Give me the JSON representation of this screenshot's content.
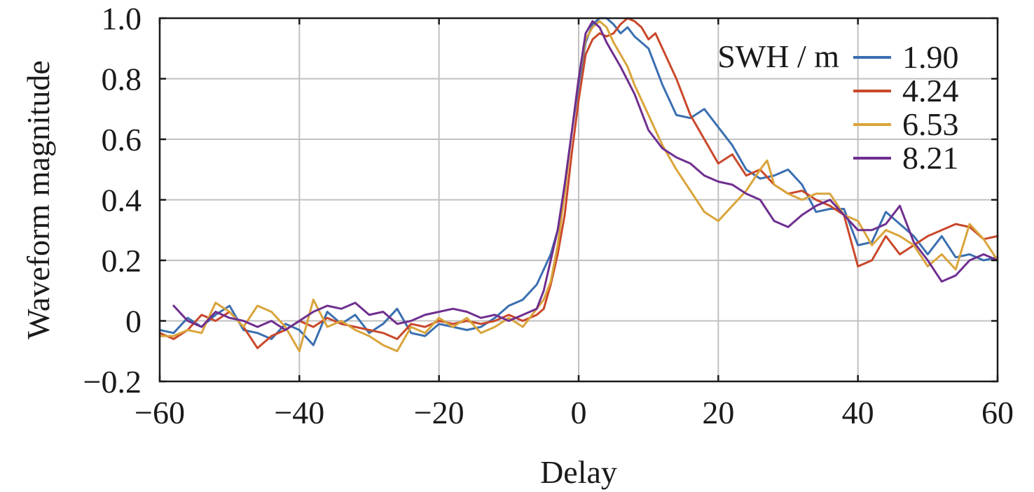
{
  "chart_data": {
    "type": "line",
    "title": "",
    "xlabel": "Delay",
    "ylabel": "Waveform magnitude",
    "xlim": [
      -60,
      60
    ],
    "ylim": [
      -0.2,
      1.0
    ],
    "xticks": [
      -60,
      -40,
      -20,
      0,
      20,
      40,
      60
    ],
    "xtick_labels": [
      "−60",
      "−40",
      "−20",
      "0",
      "20",
      "40",
      "60"
    ],
    "yticks": [
      -0.2,
      0,
      0.2,
      0.4,
      0.6,
      0.8,
      1.0
    ],
    "ytick_labels": [
      "−0.2",
      "0",
      "0.2",
      "0.4",
      "0.6",
      "0.8",
      "1.0"
    ],
    "grid": true,
    "legend": {
      "title": "SWH / m",
      "position": "top-right"
    },
    "series": [
      {
        "name": "1.90",
        "color": "#3a6fb0",
        "x": [
          -60,
          -58,
          -56,
          -54,
          -52,
          -50,
          -48,
          -46,
          -44,
          -42,
          -40,
          -38,
          -36,
          -34,
          -32,
          -30,
          -28,
          -26,
          -24,
          -22,
          -20,
          -18,
          -16,
          -14,
          -12,
          -10,
          -8,
          -6,
          -5,
          -4,
          -3,
          -2,
          -1,
          0,
          1,
          2,
          3,
          4,
          5,
          6,
          7,
          8,
          10,
          12,
          14,
          16,
          18,
          20,
          22,
          24,
          26,
          28,
          30,
          32,
          34,
          36,
          38,
          40,
          42,
          44,
          46,
          48,
          50,
          52,
          54,
          56,
          58,
          60
        ],
        "y": [
          -0.03,
          -0.04,
          0.01,
          -0.02,
          0.02,
          0.05,
          -0.03,
          -0.04,
          -0.06,
          -0.01,
          -0.03,
          -0.08,
          0.03,
          -0.01,
          0.02,
          -0.04,
          -0.01,
          0.04,
          -0.04,
          -0.05,
          -0.01,
          -0.02,
          -0.03,
          -0.02,
          0.01,
          0.05,
          0.07,
          0.12,
          0.17,
          0.22,
          0.3,
          0.45,
          0.62,
          0.78,
          0.92,
          0.98,
          1.0,
          1.0,
          0.98,
          0.95,
          0.97,
          0.94,
          0.9,
          0.78,
          0.68,
          0.67,
          0.7,
          0.64,
          0.58,
          0.5,
          0.47,
          0.48,
          0.5,
          0.45,
          0.36,
          0.37,
          0.37,
          0.25,
          0.26,
          0.36,
          0.32,
          0.28,
          0.22,
          0.28,
          0.21,
          0.22,
          0.2,
          0.21
        ]
      },
      {
        "name": "4.24",
        "color": "#c9482b",
        "x": [
          -60,
          -58,
          -56,
          -54,
          -52,
          -50,
          -48,
          -46,
          -44,
          -42,
          -40,
          -38,
          -36,
          -34,
          -32,
          -30,
          -28,
          -26,
          -24,
          -22,
          -20,
          -18,
          -16,
          -14,
          -12,
          -10,
          -8,
          -6,
          -5,
          -4,
          -3,
          -2,
          -1,
          0,
          1,
          2,
          3,
          4,
          5,
          6,
          7,
          8,
          9,
          10,
          11,
          12,
          14,
          16,
          18,
          20,
          22,
          24,
          26,
          28,
          30,
          32,
          34,
          36,
          38,
          40,
          42,
          44,
          46,
          48,
          50,
          52,
          54,
          56,
          58,
          60
        ],
        "y": [
          -0.04,
          -0.06,
          -0.03,
          0.02,
          0.0,
          0.03,
          -0.02,
          -0.09,
          -0.05,
          -0.03,
          0.0,
          -0.02,
          0.01,
          -0.01,
          -0.02,
          -0.03,
          -0.04,
          -0.06,
          -0.01,
          -0.02,
          0.0,
          -0.01,
          0.0,
          -0.01,
          0.0,
          0.02,
          0.0,
          0.02,
          0.04,
          0.12,
          0.22,
          0.35,
          0.55,
          0.73,
          0.88,
          0.93,
          0.95,
          0.94,
          0.95,
          0.98,
          1.0,
          0.99,
          0.97,
          0.93,
          0.95,
          0.9,
          0.8,
          0.68,
          0.6,
          0.52,
          0.55,
          0.48,
          0.5,
          0.45,
          0.42,
          0.43,
          0.4,
          0.38,
          0.35,
          0.18,
          0.2,
          0.28,
          0.22,
          0.25,
          0.28,
          0.3,
          0.32,
          0.31,
          0.27,
          0.28
        ]
      },
      {
        "name": "6.53",
        "color": "#d9a43a",
        "x": [
          -60,
          -58,
          -56,
          -54,
          -52,
          -50,
          -48,
          -46,
          -44,
          -42,
          -40,
          -38,
          -36,
          -34,
          -32,
          -30,
          -28,
          -26,
          -24,
          -22,
          -20,
          -18,
          -16,
          -14,
          -12,
          -10,
          -8,
          -6,
          -5,
          -4,
          -3,
          -2,
          -1,
          0,
          1,
          2,
          3,
          4,
          5,
          6,
          7,
          8,
          10,
          12,
          14,
          16,
          18,
          20,
          22,
          24,
          26,
          27,
          28,
          30,
          32,
          34,
          36,
          38,
          40,
          42,
          44,
          46,
          48,
          50,
          52,
          54,
          56,
          58,
          60
        ],
        "y": [
          -0.05,
          -0.05,
          -0.03,
          -0.04,
          0.06,
          0.03,
          -0.02,
          0.05,
          0.03,
          -0.02,
          -0.1,
          0.07,
          -0.02,
          0.0,
          -0.03,
          -0.05,
          -0.08,
          -0.1,
          -0.02,
          -0.04,
          0.01,
          -0.02,
          0.01,
          -0.04,
          -0.02,
          0.01,
          -0.02,
          0.04,
          0.07,
          0.13,
          0.25,
          0.42,
          0.62,
          0.8,
          0.93,
          0.97,
          0.99,
          0.97,
          0.92,
          0.88,
          0.84,
          0.78,
          0.68,
          0.58,
          0.5,
          0.43,
          0.36,
          0.33,
          0.38,
          0.43,
          0.5,
          0.53,
          0.45,
          0.42,
          0.4,
          0.42,
          0.42,
          0.35,
          0.33,
          0.25,
          0.3,
          0.28,
          0.25,
          0.18,
          0.22,
          0.17,
          0.32,
          0.27,
          0.2
        ]
      },
      {
        "name": "8.21",
        "color": "#6f2f8f",
        "x": [
          -58,
          -56,
          -54,
          -52,
          -50,
          -48,
          -46,
          -44,
          -42,
          -40,
          -38,
          -36,
          -34,
          -32,
          -30,
          -28,
          -26,
          -24,
          -22,
          -20,
          -18,
          -16,
          -14,
          -12,
          -10,
          -8,
          -6,
          -5,
          -4,
          -3,
          -2,
          -1,
          0,
          1,
          2,
          3,
          4,
          5,
          6,
          8,
          10,
          12,
          14,
          16,
          18,
          20,
          22,
          24,
          26,
          28,
          30,
          32,
          34,
          36,
          38,
          40,
          42,
          44,
          46,
          48,
          50,
          52,
          54,
          56,
          58,
          60
        ],
        "y": [
          0.05,
          0.0,
          -0.02,
          0.03,
          0.01,
          0.0,
          -0.02,
          0.0,
          -0.03,
          0.0,
          0.03,
          0.05,
          0.04,
          0.06,
          0.02,
          0.03,
          -0.01,
          0.0,
          0.02,
          0.03,
          0.04,
          0.03,
          0.01,
          0.02,
          0.0,
          0.02,
          0.04,
          0.1,
          0.2,
          0.3,
          0.45,
          0.62,
          0.8,
          0.95,
          0.99,
          0.97,
          0.92,
          0.88,
          0.84,
          0.75,
          0.63,
          0.57,
          0.54,
          0.52,
          0.48,
          0.46,
          0.45,
          0.42,
          0.4,
          0.33,
          0.31,
          0.35,
          0.38,
          0.4,
          0.35,
          0.3,
          0.3,
          0.32,
          0.38,
          0.26,
          0.2,
          0.13,
          0.15,
          0.2,
          0.22,
          0.2
        ]
      }
    ]
  }
}
